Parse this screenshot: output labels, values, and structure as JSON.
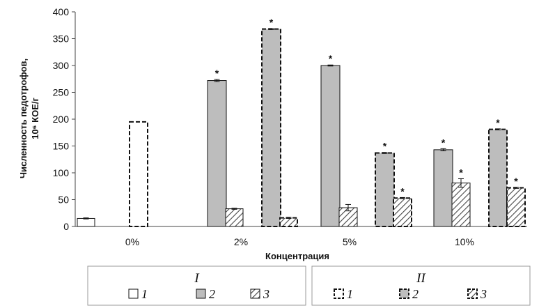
{
  "chart_data": {
    "type": "bar",
    "xlabel": "Концентрация",
    "ylabel_line1": "Численность педотрофов,",
    "ylabel_line2": "10⁶ КОЕ/г",
    "ylim": [
      0,
      400
    ],
    "yticks": [
      "0",
      "50",
      "100",
      "150",
      "200",
      "250",
      "300",
      "350",
      "400"
    ],
    "grid": false,
    "legend_position": "bottom",
    "categories": [
      "0%",
      "2%",
      "5%",
      "10%"
    ],
    "legend_groups": [
      {
        "title": "I",
        "entries": [
          "1",
          "2",
          "3"
        ]
      },
      {
        "title": "II",
        "entries": [
          "1",
          "2",
          "3"
        ]
      }
    ],
    "series": [
      {
        "group": "I",
        "label": "1",
        "style": "white-solid",
        "values": [
          15,
          null,
          null,
          null
        ],
        "errors": [
          1,
          null,
          null,
          null
        ],
        "significant": [
          false,
          false,
          false,
          false
        ]
      },
      {
        "group": "II",
        "label": "1",
        "style": "white-dashed",
        "values": [
          195,
          null,
          null,
          null
        ],
        "errors": [
          0,
          null,
          null,
          null
        ],
        "significant": [
          false,
          false,
          false,
          false
        ]
      },
      {
        "group": "I",
        "label": "2",
        "style": "gray-solid",
        "values": [
          null,
          272,
          300,
          143
        ],
        "errors": [
          null,
          2,
          1,
          2
        ],
        "significant": [
          false,
          true,
          true,
          true
        ]
      },
      {
        "group": "I",
        "label": "3",
        "style": "hatch-solid",
        "values": [
          null,
          33,
          35,
          81
        ],
        "errors": [
          null,
          1,
          6,
          8
        ],
        "significant": [
          false,
          false,
          false,
          true
        ]
      },
      {
        "group": "II",
        "label": "2",
        "style": "gray-dashed",
        "values": [
          null,
          368,
          137,
          181
        ],
        "errors": [
          null,
          1,
          1,
          1
        ],
        "significant": [
          false,
          true,
          true,
          true
        ]
      },
      {
        "group": "II",
        "label": "3",
        "style": "hatch-dashed",
        "values": [
          null,
          16,
          53,
          72
        ],
        "errors": [
          null,
          1,
          1,
          1
        ],
        "significant": [
          false,
          false,
          true,
          true
        ]
      }
    ],
    "significance_marker": "*"
  }
}
